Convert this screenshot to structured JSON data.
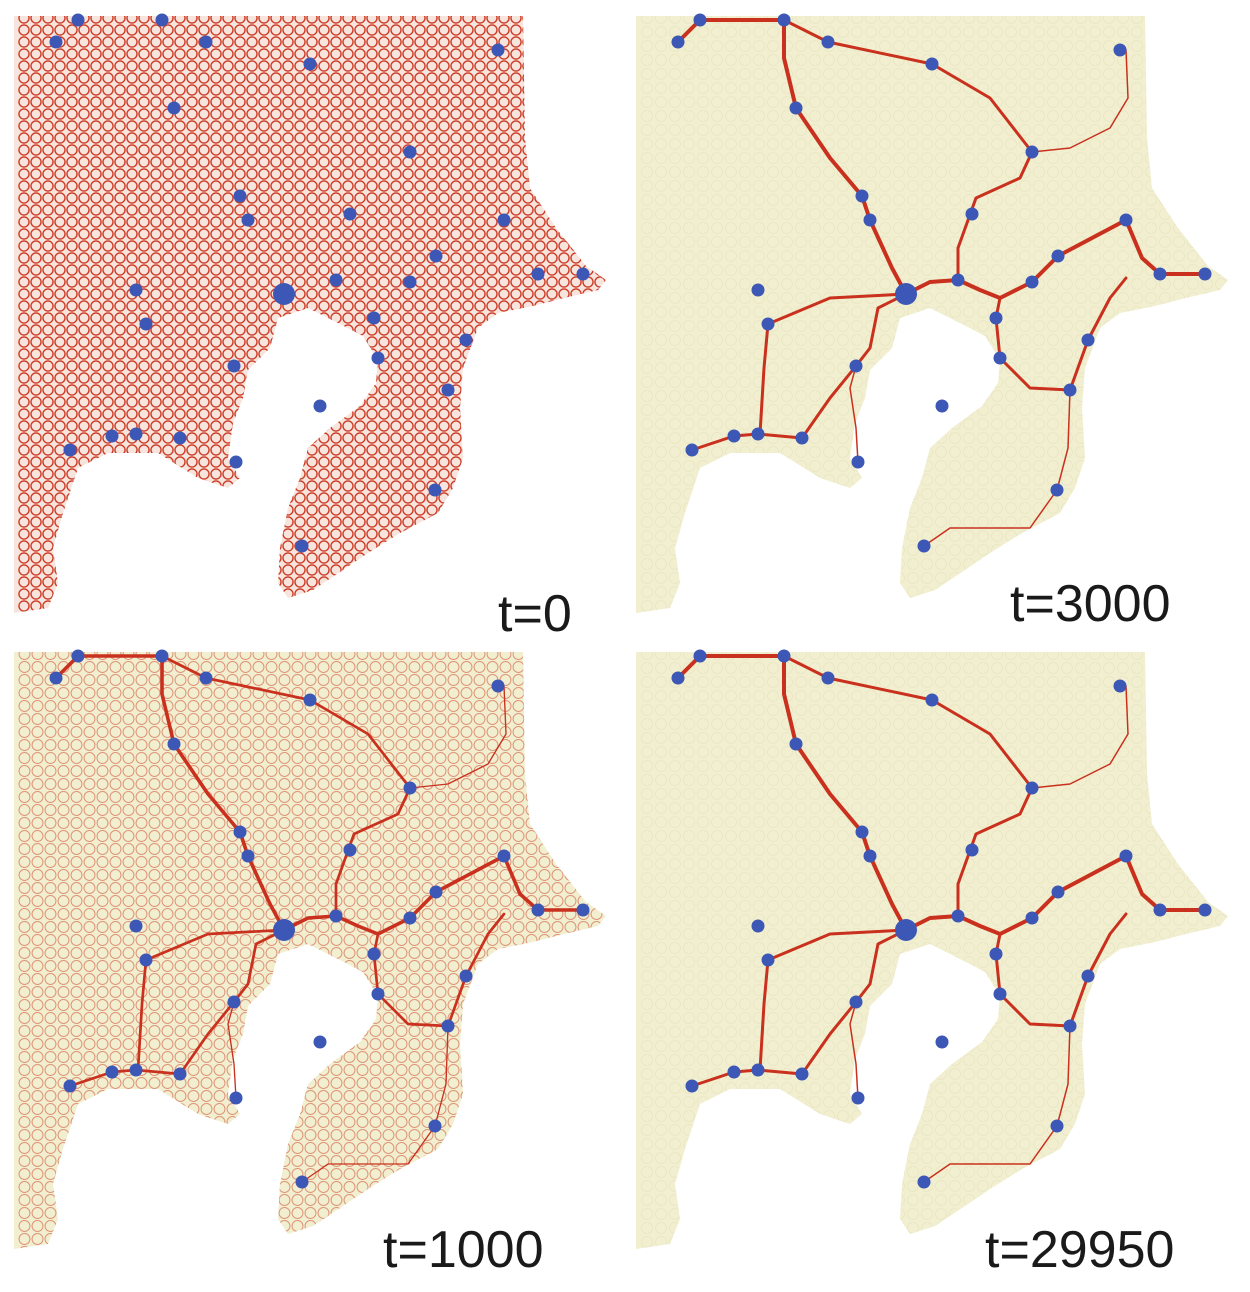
{
  "panels": [
    {
      "id": "p0",
      "label": "t=0",
      "stage": "initial",
      "mesh_density": "full"
    },
    {
      "id": "p1",
      "label": "t=3000",
      "stage": "converged",
      "mesh_density": "faint"
    },
    {
      "id": "p2",
      "label": "t=1000",
      "stage": "intermediate",
      "mesh_density": "partial"
    },
    {
      "id": "p3",
      "label": "t=29950",
      "stage": "converged",
      "mesh_density": "faint"
    }
  ],
  "colors": {
    "land": "#f1efcf",
    "mesh": "#cc3a25",
    "tube": "#c9301d",
    "food_source": "#3c57b5"
  },
  "food_source_icon": "circle",
  "center_node_icon": "large-blob"
}
